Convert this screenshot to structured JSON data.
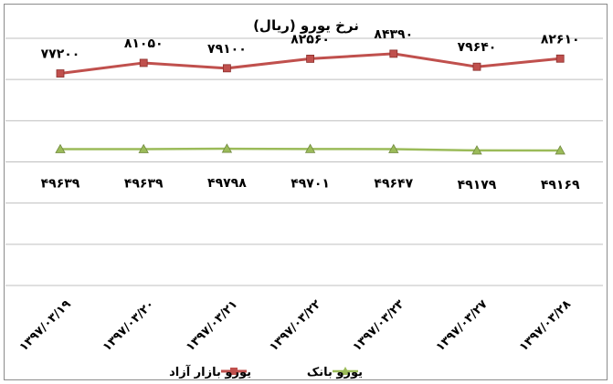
{
  "chart_data": {
    "type": "line",
    "title": "نرخ یورو (ریال)",
    "categories": [
      "۱۳۹۷/۰۳/۱۹",
      "۱۳۹۷/۰۳/۲۰",
      "۱۳۹۷/۰۳/۲۱",
      "۱۳۹۷/۰۳/۲۲",
      "۱۳۹۷/۰۳/۲۳",
      "۱۳۹۷/۰۳/۲۷",
      "۱۳۹۷/۰۳/۲۸"
    ],
    "series": [
      {
        "name": "یورو بازار آزاد",
        "color": "#c0504d",
        "marker": "square",
        "values": [
          77200,
          81050,
          79100,
          82560,
          84390,
          79640,
          82610
        ],
        "labels": [
          "۷۷۲۰۰",
          "۸۱۰۵۰",
          "۷۹۱۰۰",
          "۸۲۵۶۰",
          "۸۴۳۹۰",
          "۷۹۶۴۰",
          "۸۲۶۱۰"
        ]
      },
      {
        "name": "یورو بانک",
        "color": "#9bbb59",
        "marker": "triangle",
        "values": [
          49639,
          49639,
          49798,
          49701,
          49647,
          49179,
          49169
        ],
        "labels": [
          "۴۹۶۳۹",
          "۴۹۶۳۹",
          "۴۹۷۹۸",
          "۴۹۷۰۱",
          "۴۹۶۴۷",
          "۴۹۱۷۹",
          "۴۹۱۶۹"
        ]
      }
    ],
    "ylim": [
      0,
      90000
    ],
    "grid": true,
    "legend": "bottom",
    "xlabel": "",
    "ylabel": ""
  }
}
